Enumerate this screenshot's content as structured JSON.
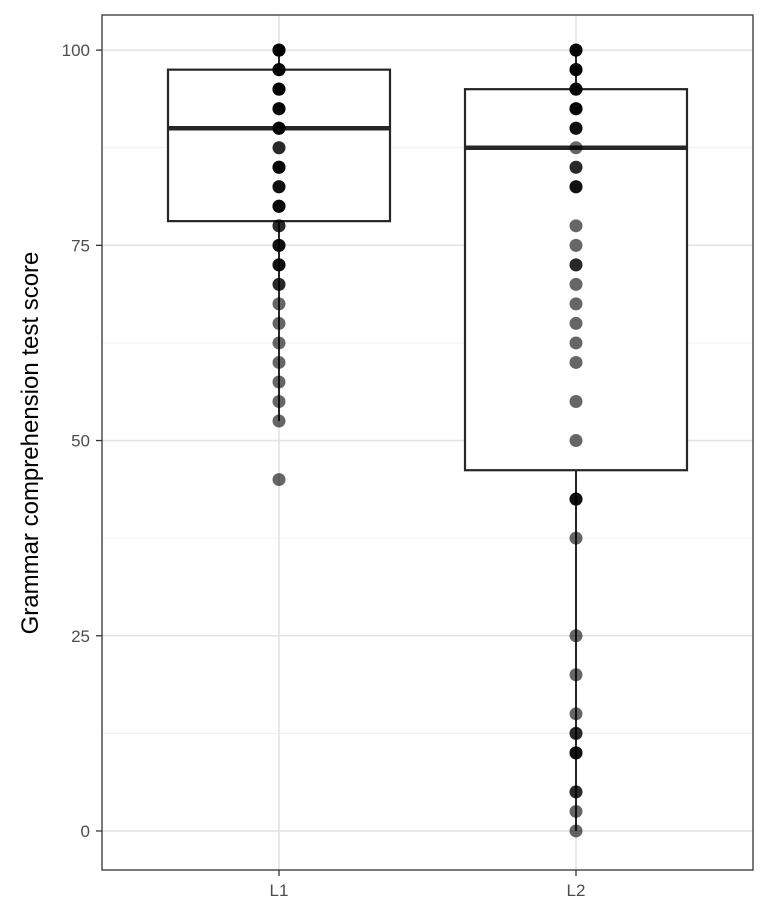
{
  "chart_data": {
    "type": "box",
    "ylabel": "Grammar comprehension test score",
    "xlabel": "",
    "ylim": [
      -5,
      104.5
    ],
    "yticks": [
      0,
      25,
      50,
      75,
      100
    ],
    "ytick_labels": [
      "0",
      "25",
      "50",
      "75",
      "100"
    ],
    "grid": true,
    "categories": [
      "L1",
      "L2"
    ],
    "boxes": [
      {
        "category": "L1",
        "whisker_low": 52.5,
        "q1": 78.1,
        "median": 90,
        "q3": 97.5,
        "whisker_high": 100,
        "points": [
          {
            "y": 100,
            "n": 5
          },
          {
            "y": 97.5,
            "n": 4
          },
          {
            "y": 95,
            "n": 5
          },
          {
            "y": 92.5,
            "n": 4
          },
          {
            "y": 90,
            "n": 4
          },
          {
            "y": 87.5,
            "n": 2
          },
          {
            "y": 85,
            "n": 4
          },
          {
            "y": 82.5,
            "n": 3
          },
          {
            "y": 80,
            "n": 4
          },
          {
            "y": 77.5,
            "n": 2
          },
          {
            "y": 75,
            "n": 3
          },
          {
            "y": 72.5,
            "n": 3
          },
          {
            "y": 70,
            "n": 2
          },
          {
            "y": 67.5,
            "n": 1
          },
          {
            "y": 65,
            "n": 1
          },
          {
            "y": 62.5,
            "n": 1
          },
          {
            "y": 60,
            "n": 1
          },
          {
            "y": 57.5,
            "n": 1
          },
          {
            "y": 55,
            "n": 1
          },
          {
            "y": 52.5,
            "n": 1
          },
          {
            "y": 45,
            "n": 1
          }
        ]
      },
      {
        "category": "L2",
        "whisker_low": 0,
        "q1": 46.2,
        "median": 87.5,
        "q3": 95,
        "whisker_high": 100,
        "points": [
          {
            "y": 100,
            "n": 4
          },
          {
            "y": 97.5,
            "n": 4
          },
          {
            "y": 95,
            "n": 4
          },
          {
            "y": 92.5,
            "n": 4
          },
          {
            "y": 90,
            "n": 3
          },
          {
            "y": 87.5,
            "n": 1
          },
          {
            "y": 85,
            "n": 2
          },
          {
            "y": 82.5,
            "n": 3
          },
          {
            "y": 77.5,
            "n": 1
          },
          {
            "y": 75,
            "n": 1
          },
          {
            "y": 72.5,
            "n": 2
          },
          {
            "y": 70,
            "n": 1
          },
          {
            "y": 67.5,
            "n": 1
          },
          {
            "y": 65,
            "n": 1
          },
          {
            "y": 62.5,
            "n": 1
          },
          {
            "y": 60,
            "n": 1
          },
          {
            "y": 55,
            "n": 1
          },
          {
            "y": 50,
            "n": 1
          },
          {
            "y": 42.5,
            "n": 3
          },
          {
            "y": 37.5,
            "n": 1
          },
          {
            "y": 25,
            "n": 1
          },
          {
            "y": 20,
            "n": 1
          },
          {
            "y": 15,
            "n": 1
          },
          {
            "y": 12.5,
            "n": 2
          },
          {
            "y": 10,
            "n": 3
          },
          {
            "y": 5,
            "n": 2
          },
          {
            "y": 2.5,
            "n": 1
          },
          {
            "y": 0,
            "n": 1
          }
        ]
      }
    ],
    "colors": {
      "box_line": "#262626",
      "point": "#000000",
      "grid_major": "#e3e3e3",
      "grid_minor": "#f0f0f0",
      "panel_border": "#333333",
      "tick_label": "#4d4d4d"
    }
  }
}
